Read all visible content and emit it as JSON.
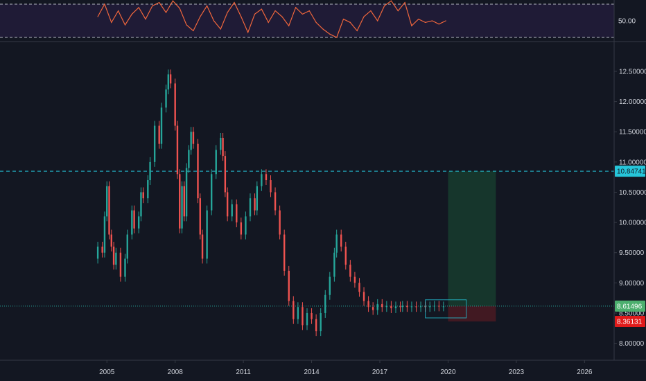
{
  "chart_data": [
    {
      "type": "line",
      "panel": "oscillator",
      "ylim": [
        25,
        75
      ],
      "band": [
        30,
        70
      ],
      "tick_labels": [
        "50.00"
      ],
      "tick_values": [
        50
      ],
      "colors": {
        "line": "#f0663c",
        "band": "#2a1f47",
        "band_line": "#d1d4dc"
      },
      "x": [
        2004.6,
        2004.9,
        2005.2,
        2005.5,
        2005.8,
        2006.1,
        2006.4,
        2006.7,
        2007.0,
        2007.3,
        2007.6,
        2007.9,
        2008.2,
        2008.5,
        2008.8,
        2009.1,
        2009.4,
        2009.7,
        2010.0,
        2010.3,
        2010.6,
        2010.9,
        2011.2,
        2011.5,
        2011.8,
        2012.1,
        2012.4,
        2012.7,
        2013.0,
        2013.3,
        2013.6,
        2013.9,
        2014.2,
        2014.5,
        2014.8,
        2015.1,
        2015.4,
        2015.7,
        2016.0,
        2016.3,
        2016.6,
        2016.9,
        2017.2,
        2017.5,
        2017.8,
        2018.1,
        2018.4,
        2018.7,
        2019.0,
        2019.3,
        2019.6,
        2019.9
      ],
      "values": [
        55,
        70,
        48,
        62,
        45,
        58,
        66,
        52,
        68,
        72,
        60,
        74,
        65,
        45,
        38,
        55,
        68,
        50,
        40,
        60,
        72,
        55,
        36,
        58,
        64,
        48,
        62,
        55,
        44,
        66,
        58,
        62,
        48,
        40,
        34,
        30,
        52,
        48,
        38,
        55,
        62,
        50,
        68,
        74,
        62,
        72,
        44,
        52,
        48,
        50,
        46,
        50
      ]
    },
    {
      "type": "line",
      "panel": "price",
      "title": "",
      "xlabel": "",
      "ylabel": "",
      "xlim": [
        2000.3,
        2027.3
      ],
      "ylim": [
        7.72,
        12.97
      ],
      "tick_labels_x": [
        "2005",
        "2008",
        "2011",
        "2014",
        "2017",
        "2020",
        "2023",
        "2026"
      ],
      "tick_values_x": [
        2005,
        2008,
        2011,
        2014,
        2017,
        2020,
        2023,
        2026
      ],
      "tick_labels_y": [
        "8.00000",
        "8.50000",
        "9.00000",
        "9.50000",
        "10.00000",
        "10.50000",
        "11.00000",
        "11.50000",
        "12.00000",
        "12.50000"
      ],
      "tick_values_y": [
        8.0,
        8.5,
        9.0,
        9.5,
        10.0,
        10.5,
        11.0,
        11.5,
        12.0,
        12.5
      ],
      "grid": false,
      "colors": {
        "up": "#26a69a",
        "down": "#ef5350",
        "target_line": "#26c6da",
        "current_line": "#26a69a"
      },
      "x": [
        2004.5,
        2004.6,
        2004.8,
        2004.9,
        2005.0,
        2005.1,
        2005.2,
        2005.3,
        2005.4,
        2005.6,
        2005.8,
        2005.9,
        2006.1,
        2006.2,
        2006.4,
        2006.5,
        2006.6,
        2006.8,
        2006.9,
        2007.1,
        2007.3,
        2007.4,
        2007.6,
        2007.7,
        2007.8,
        2008.0,
        2008.1,
        2008.2,
        2008.3,
        2008.4,
        2008.5,
        2008.6,
        2008.7,
        2008.8,
        2009.0,
        2009.1,
        2009.2,
        2009.4,
        2009.6,
        2009.8,
        2010.0,
        2010.1,
        2010.2,
        2010.3,
        2010.5,
        2010.7,
        2010.9,
        2011.1,
        2011.3,
        2011.5,
        2011.6,
        2011.8,
        2012.0,
        2012.2,
        2012.4,
        2012.6,
        2012.8,
        2013.0,
        2013.2,
        2013.4,
        2013.6,
        2013.8,
        2014.0,
        2014.2,
        2014.4,
        2014.6,
        2014.8,
        2015.0,
        2015.1,
        2015.3,
        2015.5,
        2015.7,
        2015.9,
        2016.1,
        2016.3,
        2016.5,
        2016.7,
        2016.9,
        2017.1,
        2017.3,
        2017.5,
        2017.7,
        2017.9,
        2018.0,
        2018.2,
        2018.4,
        2018.6,
        2018.8,
        2019.0,
        2019.2,
        2019.4,
        2019.6,
        2019.8
      ],
      "values": [
        9.4,
        9.6,
        9.5,
        10.1,
        10.6,
        9.8,
        9.6,
        9.3,
        9.5,
        9.1,
        9.4,
        9.8,
        10.2,
        9.9,
        10.1,
        10.5,
        10.4,
        10.7,
        11.0,
        11.6,
        11.3,
        11.9,
        12.2,
        12.45,
        12.3,
        11.6,
        10.8,
        9.9,
        10.6,
        10.1,
        10.9,
        11.2,
        11.5,
        11.3,
        10.4,
        9.8,
        9.4,
        10.2,
        10.8,
        11.2,
        11.4,
        11.1,
        10.5,
        10.1,
        10.3,
        10.0,
        9.8,
        10.1,
        10.4,
        10.2,
        10.6,
        10.8,
        10.7,
        10.5,
        10.2,
        9.8,
        9.2,
        8.7,
        8.4,
        8.6,
        8.3,
        8.5,
        8.4,
        8.2,
        8.5,
        8.8,
        9.1,
        9.5,
        9.8,
        9.6,
        9.3,
        9.1,
        9.0,
        8.85,
        8.7,
        8.6,
        8.55,
        8.65,
        8.6,
        8.62,
        8.58,
        8.61,
        8.6,
        8.62,
        8.6,
        8.61,
        8.6,
        8.61,
        8.6,
        8.61,
        8.62,
        8.61,
        8.61
      ],
      "target_line": 10.84741,
      "current_price": 8.61496,
      "stop_price": 8.36131,
      "current_label": "8.61496",
      "target_label": "10.84741",
      "stop_label": "8.36131",
      "position_tool": {
        "x_start": 2020.0,
        "x_end": 2022.1,
        "entry": 8.61496,
        "target": 10.84741,
        "stop": 8.36131
      },
      "highlight_box": {
        "x_start": 2019.0,
        "x_end": 2020.8,
        "y_low": 8.42,
        "y_high": 8.72
      }
    }
  ]
}
